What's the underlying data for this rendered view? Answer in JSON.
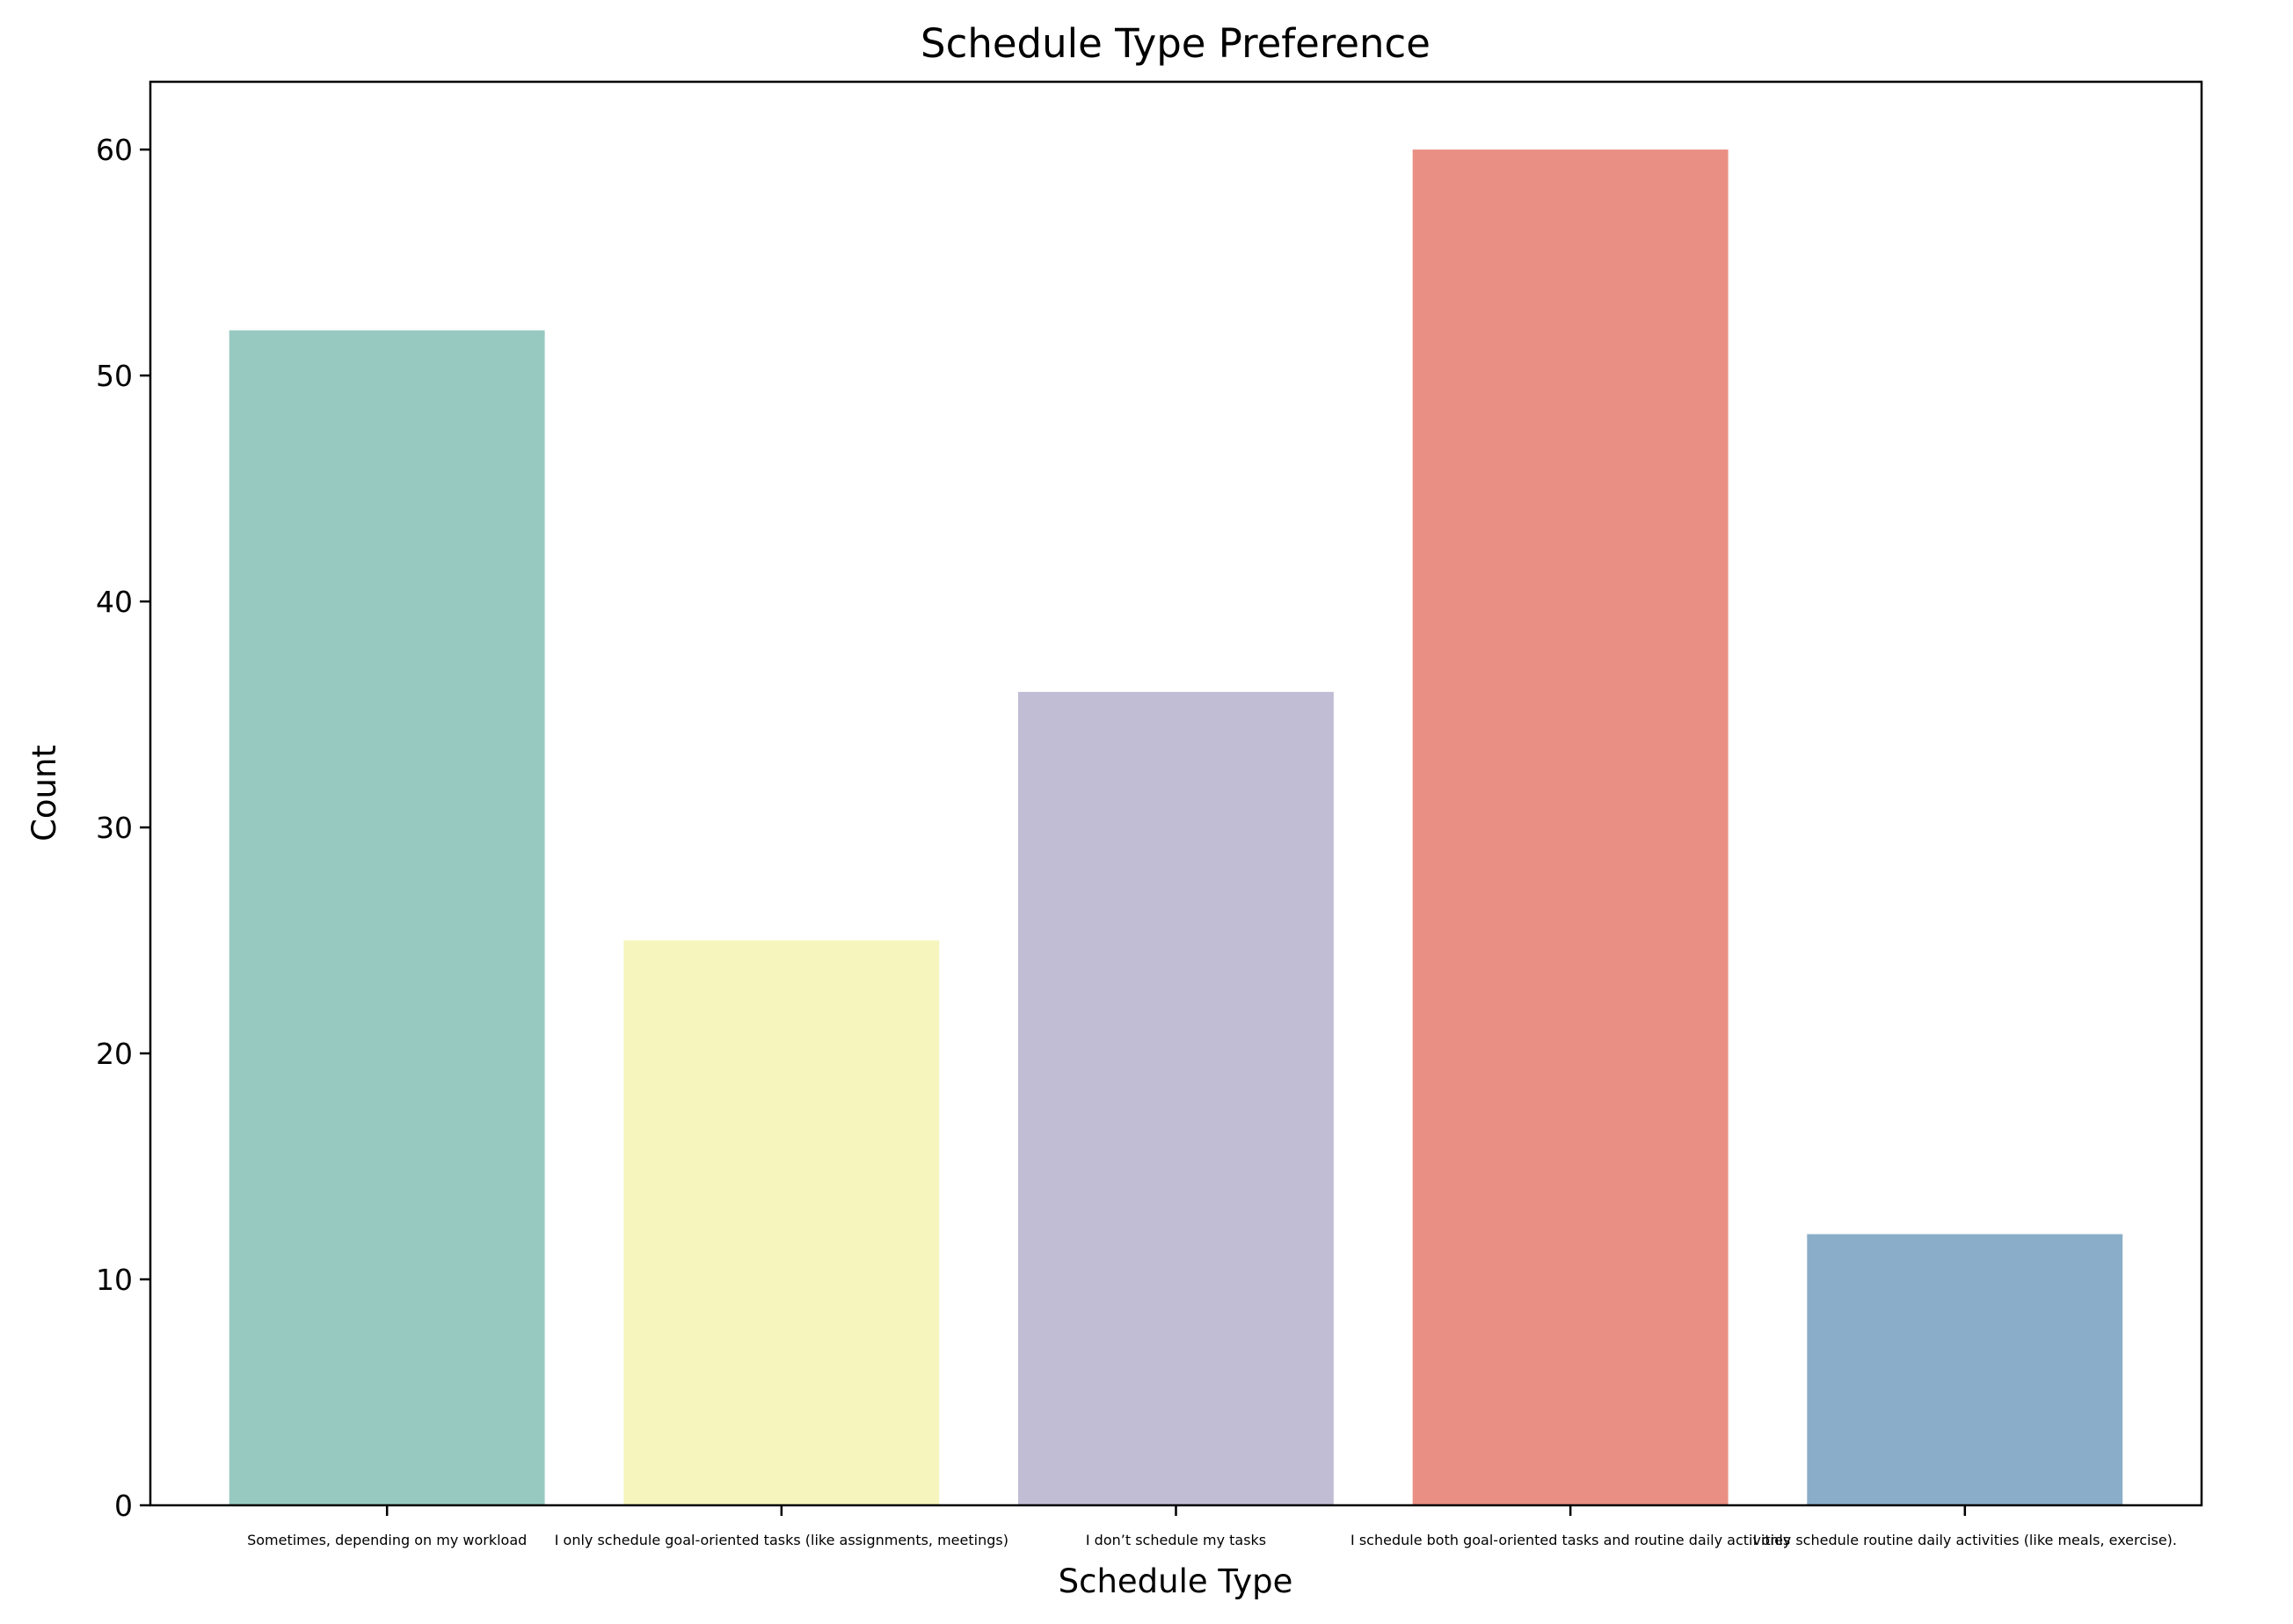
{
  "chart_data": {
    "type": "bar",
    "title": "Schedule Type Preference",
    "xlabel": "Schedule Type",
    "ylabel": "Count",
    "categories": [
      "Sometimes, depending on my workload",
      "I only schedule goal-oriented tasks (like assignments, meetings)",
      "I don’t schedule my tasks",
      "I schedule both goal-oriented tasks and routine daily activities",
      "I only schedule routine daily activities (like meals, exercise)."
    ],
    "values": [
      52,
      25,
      36,
      60,
      12
    ],
    "colors": [
      "#98c9c1",
      "#f6f5bd",
      "#c1bdd5",
      "#ea8f84",
      "#8aaec9"
    ],
    "ylim": [
      0,
      63
    ],
    "yticks": [
      0,
      10,
      20,
      30,
      40,
      50,
      60
    ],
    "grid": false,
    "legend": "none"
  }
}
